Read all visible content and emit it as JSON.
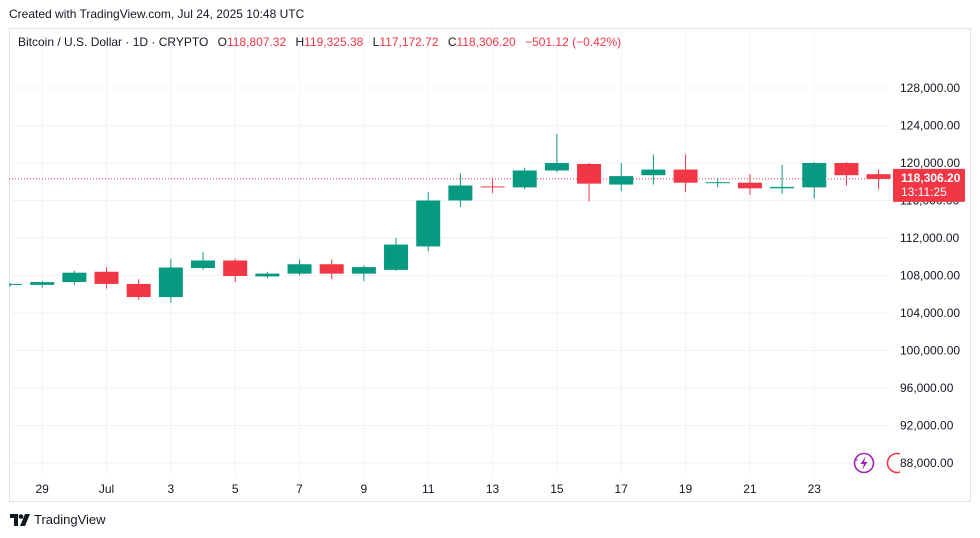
{
  "header": {
    "created_text": "Created with TradingView.com, Jul 24, 2025 10:48 UTC"
  },
  "legend": {
    "symbol": "Bitcoin / U.S. Dollar · 1D · CRYPTO",
    "o_label": "O",
    "o_value": "118,807.32",
    "h_label": "H",
    "h_value": "119,325.38",
    "l_label": "L",
    "l_value": "117,172.72",
    "c_label": "C",
    "c_value": "118,306.20",
    "change": "−501.12 (−0.42%)"
  },
  "price_tag": {
    "price": "118,306.20",
    "countdown": "13:11:25"
  },
  "footer": {
    "logo_text": "TradingView"
  },
  "colors": {
    "up": "#089981",
    "down": "#f23645",
    "grid": "#f0f3fa",
    "text": "#131722"
  },
  "icons": {
    "flash": "lightning-icon",
    "logo": "tradingview-logo-icon"
  },
  "chart_data": {
    "type": "candlestick",
    "title": "Bitcoin / U.S. Dollar · 1D · CRYPTO",
    "ylim": [
      86000,
      130000
    ],
    "y_ticks": [
      88000,
      92000,
      96000,
      100000,
      104000,
      108000,
      112000,
      116000,
      120000,
      124000,
      128000
    ],
    "y_tick_labels": [
      "88,000.00",
      "92,000.00",
      "96,000.00",
      "100,000.00",
      "104,000.00",
      "108,000.00",
      "112,000.00",
      "116,000.00",
      "120,000.00",
      "124,000.00",
      "128,000.00"
    ],
    "x_tick_labels": [
      {
        "day": 1,
        "label": "29"
      },
      {
        "day": 3,
        "label": "Jul"
      },
      {
        "day": 5,
        "label": "3"
      },
      {
        "day": 7,
        "label": "5"
      },
      {
        "day": 9,
        "label": "7"
      },
      {
        "day": 11,
        "label": "9"
      },
      {
        "day": 13,
        "label": "11"
      },
      {
        "day": 15,
        "label": "13"
      },
      {
        "day": 17,
        "label": "15"
      },
      {
        "day": 19,
        "label": "17"
      },
      {
        "day": 21,
        "label": "19"
      },
      {
        "day": 23,
        "label": "21"
      },
      {
        "day": 25,
        "label": "23"
      }
    ],
    "last_price": 118306.2,
    "candles": [
      {
        "date": "Jun 27",
        "o": 107000,
        "h": 107200,
        "l": 106800,
        "c": 107100
      },
      {
        "date": "Jun 28",
        "o": 107000,
        "h": 107400,
        "l": 106700,
        "c": 107300
      },
      {
        "date": "Jun 29",
        "o": 107300,
        "h": 108500,
        "l": 107000,
        "c": 108300
      },
      {
        "date": "Jun 30",
        "o": 108400,
        "h": 108900,
        "l": 106600,
        "c": 107100
      },
      {
        "date": "Jul 1",
        "o": 107100,
        "h": 107600,
        "l": 105400,
        "c": 105700
      },
      {
        "date": "Jul 2",
        "o": 105700,
        "h": 109800,
        "l": 105100,
        "c": 108850
      },
      {
        "date": "Jul 3",
        "o": 108800,
        "h": 110500,
        "l": 108600,
        "c": 109600
      },
      {
        "date": "Jul 4",
        "o": 109600,
        "h": 109800,
        "l": 107300,
        "c": 107950
      },
      {
        "date": "Jul 5",
        "o": 107900,
        "h": 108400,
        "l": 107700,
        "c": 108200
      },
      {
        "date": "Jul 6",
        "o": 108200,
        "h": 109700,
        "l": 108000,
        "c": 109200
      },
      {
        "date": "Jul 7",
        "o": 109200,
        "h": 109700,
        "l": 107600,
        "c": 108200
      },
      {
        "date": "Jul 8",
        "o": 108200,
        "h": 109100,
        "l": 107400,
        "c": 108900
      },
      {
        "date": "Jul 9",
        "o": 108600,
        "h": 112000,
        "l": 108500,
        "c": 111300
      },
      {
        "date": "Jul 10",
        "o": 111100,
        "h": 116900,
        "l": 110600,
        "c": 116000
      },
      {
        "date": "Jul 11",
        "o": 116000,
        "h": 118900,
        "l": 115300,
        "c": 117600
      },
      {
        "date": "Jul 12",
        "o": 117500,
        "h": 118300,
        "l": 116800,
        "c": 117400
      },
      {
        "date": "Jul 13",
        "o": 117400,
        "h": 119500,
        "l": 117200,
        "c": 119200
      },
      {
        "date": "Jul 14",
        "o": 119200,
        "h": 123100,
        "l": 119000,
        "c": 120000
      },
      {
        "date": "Jul 15",
        "o": 119900,
        "h": 120000,
        "l": 115900,
        "c": 117800
      },
      {
        "date": "Jul 16",
        "o": 117700,
        "h": 120000,
        "l": 117000,
        "c": 118600
      },
      {
        "date": "Jul 17",
        "o": 118700,
        "h": 120900,
        "l": 117700,
        "c": 119300
      },
      {
        "date": "Jul 18",
        "o": 119300,
        "h": 120900,
        "l": 116900,
        "c": 117900
      },
      {
        "date": "Jul 19",
        "o": 117900,
        "h": 118400,
        "l": 117400,
        "c": 117950
      },
      {
        "date": "Jul 20",
        "o": 117900,
        "h": 118800,
        "l": 116600,
        "c": 117300
      },
      {
        "date": "Jul 21",
        "o": 117300,
        "h": 119800,
        "l": 116700,
        "c": 117450
      },
      {
        "date": "Jul 22",
        "o": 117400,
        "h": 120100,
        "l": 116200,
        "c": 120000
      },
      {
        "date": "Jul 23",
        "o": 120000,
        "h": 120100,
        "l": 117600,
        "c": 118700
      },
      {
        "date": "Jul 24",
        "o": 118807.32,
        "h": 119325.38,
        "l": 117172.72,
        "c": 118306.2
      }
    ]
  }
}
